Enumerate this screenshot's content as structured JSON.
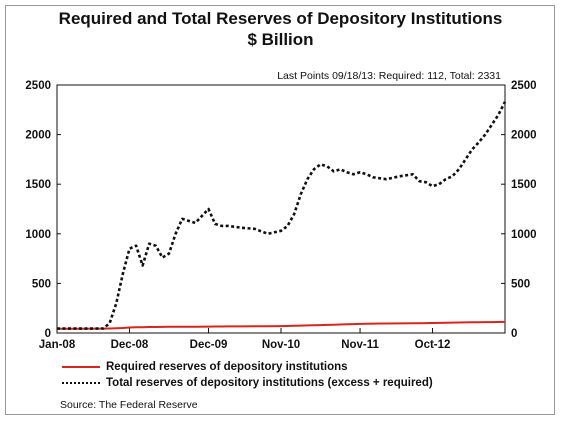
{
  "chart_data": {
    "type": "line",
    "title": "Required and Total Reserves of Depository Institutions",
    "subtitle": "$ Billion",
    "annotation": "Last Points 09/18/13: Required: 112, Total: 2331",
    "x_tick_labels": [
      "Jan-08",
      "Dec-08",
      "Dec-09",
      "Nov-10",
      "Nov-11",
      "Oct-12"
    ],
    "y_ticks": [
      0,
      500,
      1000,
      1500,
      2000,
      2500
    ],
    "y_ticks_right": [
      0,
      500,
      1000,
      1500,
      2000,
      2500
    ],
    "ylim": [
      0,
      2500
    ],
    "xlim": [
      "Jan-08",
      "Sep-13"
    ],
    "grid": false,
    "legend_position": "bottom",
    "x_dates": [
      "2008-01",
      "2008-04",
      "2008-08",
      "2008-09",
      "2008-10",
      "2008-11",
      "2008-12",
      "2009-01",
      "2009-02",
      "2009-03",
      "2009-04",
      "2009-05",
      "2009-06",
      "2009-07",
      "2009-08",
      "2009-10",
      "2009-12",
      "2010-01",
      "2010-02",
      "2010-03",
      "2010-05",
      "2010-07",
      "2010-09",
      "2010-11",
      "2010-12",
      "2011-01",
      "2011-02",
      "2011-03",
      "2011-04",
      "2011-05",
      "2011-06",
      "2011-07",
      "2011-08",
      "2011-09",
      "2011-10",
      "2011-11",
      "2011-12",
      "2012-01",
      "2012-03",
      "2012-05",
      "2012-07",
      "2012-08",
      "2012-09",
      "2012-10",
      "2012-11",
      "2012-12",
      "2013-01",
      "2013-02",
      "2013-03",
      "2013-04",
      "2013-05",
      "2013-06",
      "2013-07",
      "2013-08",
      "2013-09"
    ],
    "series": [
      {
        "name": "Required reserves of depository institutions",
        "color": "#d7261e",
        "values": [
          43,
          43,
          44,
          45,
          47,
          50,
          55,
          57,
          58,
          60,
          60,
          61,
          62,
          62,
          63,
          63,
          65,
          66,
          66,
          67,
          67,
          68,
          69,
          70,
          71,
          73,
          75,
          77,
          78,
          80,
          82,
          84,
          86,
          88,
          90,
          92,
          94,
          95,
          96,
          97,
          98,
          99,
          100,
          101,
          102,
          104,
          105,
          106,
          107,
          108,
          109,
          110,
          110,
          111,
          112
        ]
      },
      {
        "name": "Total reserves of depository institutions (excess + required)",
        "color": "#111111",
        "values": [
          45,
          44,
          45,
          100,
          300,
          600,
          850,
          880,
          680,
          900,
          880,
          760,
          800,
          1000,
          1150,
          1110,
          1250,
          1100,
          1080,
          1080,
          1060,
          1050,
          1000,
          1030,
          1080,
          1200,
          1400,
          1550,
          1650,
          1700,
          1680,
          1630,
          1650,
          1620,
          1600,
          1620,
          1600,
          1570,
          1550,
          1580,
          1600,
          1530,
          1520,
          1480,
          1500,
          1550,
          1580,
          1650,
          1750,
          1850,
          1920,
          2000,
          2100,
          2200,
          2331
        ]
      }
    ]
  },
  "legend": {
    "required": "Required reserves of depository institutions",
    "total": "Total reserves of depository institutions (excess + required)"
  },
  "source": "Source: The Federal Reserve"
}
